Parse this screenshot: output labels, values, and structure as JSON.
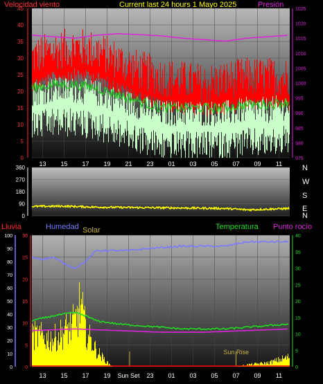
{
  "header": {
    "left_title": "Velocidad viento",
    "center_title": "Current last 24 hours 1 Mayo 2025",
    "right_title": "Presión"
  },
  "colors": {
    "wind_gust": "#ff0000",
    "wind_avg": "#22cc22",
    "wind_light": "#c8ffc8",
    "pressure": "#dd22dd",
    "direction": "#ffff00",
    "humidity": "#7a7aff",
    "temperature": "#22dd22",
    "dew_point": "#dd22dd",
    "solar": "#ffff00",
    "rain": "#ff0000",
    "axis_left": "#ff3333",
    "axis_right": "#dd22dd"
  },
  "chart_data": [
    {
      "type": "line",
      "id": "wind_pressure",
      "x_ticks": [
        "13",
        "15",
        "17",
        "19",
        "21",
        "23",
        "01",
        "03",
        "05",
        "07",
        "09",
        "11"
      ],
      "left_axis": {
        "label": "Velocidad viento",
        "ticks": [
          0,
          5,
          10,
          15,
          20,
          25,
          30,
          35,
          40,
          45
        ],
        "ylim": [
          0,
          45
        ]
      },
      "right_axis": {
        "label": "Presión",
        "ticks": [
          975,
          980,
          985,
          990,
          995,
          1000,
          1005,
          1010,
          1015,
          1020,
          1025
        ],
        "ylim": [
          975,
          1025
        ]
      },
      "series": [
        {
          "name": "Velocidad viento",
          "axis": "left",
          "keypoints": [
            [
              0,
              28
            ],
            [
              2,
              30
            ],
            [
              4,
              31
            ],
            [
              6,
              30
            ],
            [
              8,
              27
            ],
            [
              10,
              24
            ],
            [
              12,
              22
            ],
            [
              14,
              21
            ],
            [
              16,
              20
            ],
            [
              18,
              21
            ],
            [
              20,
              22
            ],
            [
              22,
              22
            ],
            [
              24,
              22
            ]
          ]
        },
        {
          "axis": "left",
          "keypoints": [
            [
              0,
              21
            ],
            [
              2,
              22
            ],
            [
              4,
              22
            ],
            [
              6,
              21
            ],
            [
              8,
              19
            ],
            [
              10,
              17
            ],
            [
              12,
              15
            ],
            [
              14,
              15
            ],
            [
              16,
              15
            ],
            [
              18,
              15
            ],
            [
              20,
              16
            ],
            [
              22,
              16
            ],
            [
              24,
              17
            ]
          ]
        },
        {
          "name": "Presión",
          "axis": "right",
          "keypoints": [
            [
              0,
              1016
            ],
            [
              2,
              1015.5
            ],
            [
              4,
              1015
            ],
            [
              6,
              1016
            ],
            [
              8,
              1016.5
            ],
            [
              10,
              1016.2
            ],
            [
              12,
              1015.8
            ],
            [
              14,
              1015
            ],
            [
              16,
              1014.5
            ],
            [
              18,
              1014
            ],
            [
              20,
              1015
            ],
            [
              22,
              1015.5
            ],
            [
              24,
              1016
            ]
          ]
        }
      ]
    },
    {
      "type": "scatter",
      "id": "wind_direction",
      "x_ticks": [
        "13",
        "15",
        "17",
        "19",
        "21",
        "23",
        "01",
        "03",
        "05",
        "07",
        "09",
        "11"
      ],
      "left_axis": {
        "ticks": [
          0,
          90,
          180,
          270,
          360
        ],
        "ylim": [
          0,
          360
        ]
      },
      "right_labels": [
        "N",
        "W",
        "S",
        "E",
        "N"
      ],
      "series": [
        {
          "axis": "left",
          "keypoints": [
            [
              0,
              70
            ],
            [
              3,
              72
            ],
            [
              6,
              65
            ],
            [
              9,
              62
            ],
            [
              12,
              60
            ],
            [
              15,
              58
            ],
            [
              18,
              55
            ],
            [
              20,
              45
            ],
            [
              22,
              50
            ],
            [
              24,
              55
            ]
          ]
        }
      ]
    },
    {
      "type": "line",
      "id": "temp_humidity_solar",
      "labels": {
        "rain": "Lluvia",
        "humidity": "Humedad",
        "solar": "Solar",
        "temperature": "Temperatura",
        "dew_point": "Punto rocío"
      },
      "x_ticks": [
        "13",
        "15",
        "17",
        "19",
        "Sun Set",
        "23",
        "01",
        "03",
        "05",
        "07",
        "09",
        "11"
      ],
      "annotations": [
        "Sun Set",
        "Sun Rise"
      ],
      "rain_axis": {
        "ticks": [
          0,
          10,
          20,
          30,
          40,
          50,
          60,
          70,
          80,
          90,
          100
        ],
        "ylim": [
          0,
          100
        ]
      },
      "humidity_axis": {
        "ticks": [
          0,
          5,
          10,
          15,
          20,
          25,
          30
        ],
        "ylim": [
          0,
          30
        ]
      },
      "temperature_axis": {
        "ticks": [
          0,
          5,
          10,
          15,
          20,
          25,
          30,
          35,
          40
        ],
        "ylim": [
          0,
          40
        ]
      },
      "series": [
        {
          "name": "Humedad",
          "axis": "humidity",
          "keypoints": [
            [
              0,
              25
            ],
            [
              1,
              24.5
            ],
            [
              2,
              25
            ],
            [
              3,
              23.5
            ],
            [
              4,
              22.5
            ],
            [
              5,
              24
            ],
            [
              6,
              26.5
            ],
            [
              9,
              26.5
            ],
            [
              11,
              27
            ],
            [
              14,
              27.5
            ],
            [
              16,
              27.5
            ],
            [
              18,
              27.5
            ],
            [
              20,
              28.5
            ],
            [
              22,
              28.5
            ],
            [
              24,
              28.5
            ]
          ]
        },
        {
          "name": "Temperatura",
          "axis": "temperature",
          "keypoints": [
            [
              0,
              14
            ],
            [
              2,
              15.5
            ],
            [
              4,
              16.5
            ],
            [
              5,
              15.5
            ],
            [
              6,
              14
            ],
            [
              8,
              13
            ],
            [
              10,
              12.5
            ],
            [
              12,
              12
            ],
            [
              14,
              11.5
            ],
            [
              16,
              11.5
            ],
            [
              18,
              11.5
            ],
            [
              20,
              12
            ],
            [
              22,
              12.5
            ],
            [
              24,
              13
            ]
          ]
        },
        {
          "name": "Punto rocío",
          "axis": "temperature",
          "keypoints": [
            [
              0,
              11
            ],
            [
              4,
              11.5
            ],
            [
              8,
              11
            ],
            [
              12,
              10.5
            ],
            [
              16,
              10.5
            ],
            [
              20,
              11
            ],
            [
              24,
              11.5
            ]
          ]
        },
        {
          "name": "Solar",
          "axis": "humidity",
          "keypoints": [
            [
              0,
              8
            ],
            [
              2,
              7
            ],
            [
              3,
              9
            ],
            [
              4,
              11
            ],
            [
              4.5,
              16
            ],
            [
              5,
              9
            ],
            [
              6,
              4
            ],
            [
              7,
              1
            ],
            [
              7.5,
              0
            ],
            [
              19,
              0
            ],
            [
              20,
              0.5
            ],
            [
              22,
              1
            ],
            [
              24,
              2.5
            ]
          ]
        },
        {
          "name": "Lluvia",
          "axis": "rain",
          "keypoints": [
            [
              0,
              0
            ],
            [
              24,
              0
            ]
          ]
        }
      ]
    }
  ]
}
